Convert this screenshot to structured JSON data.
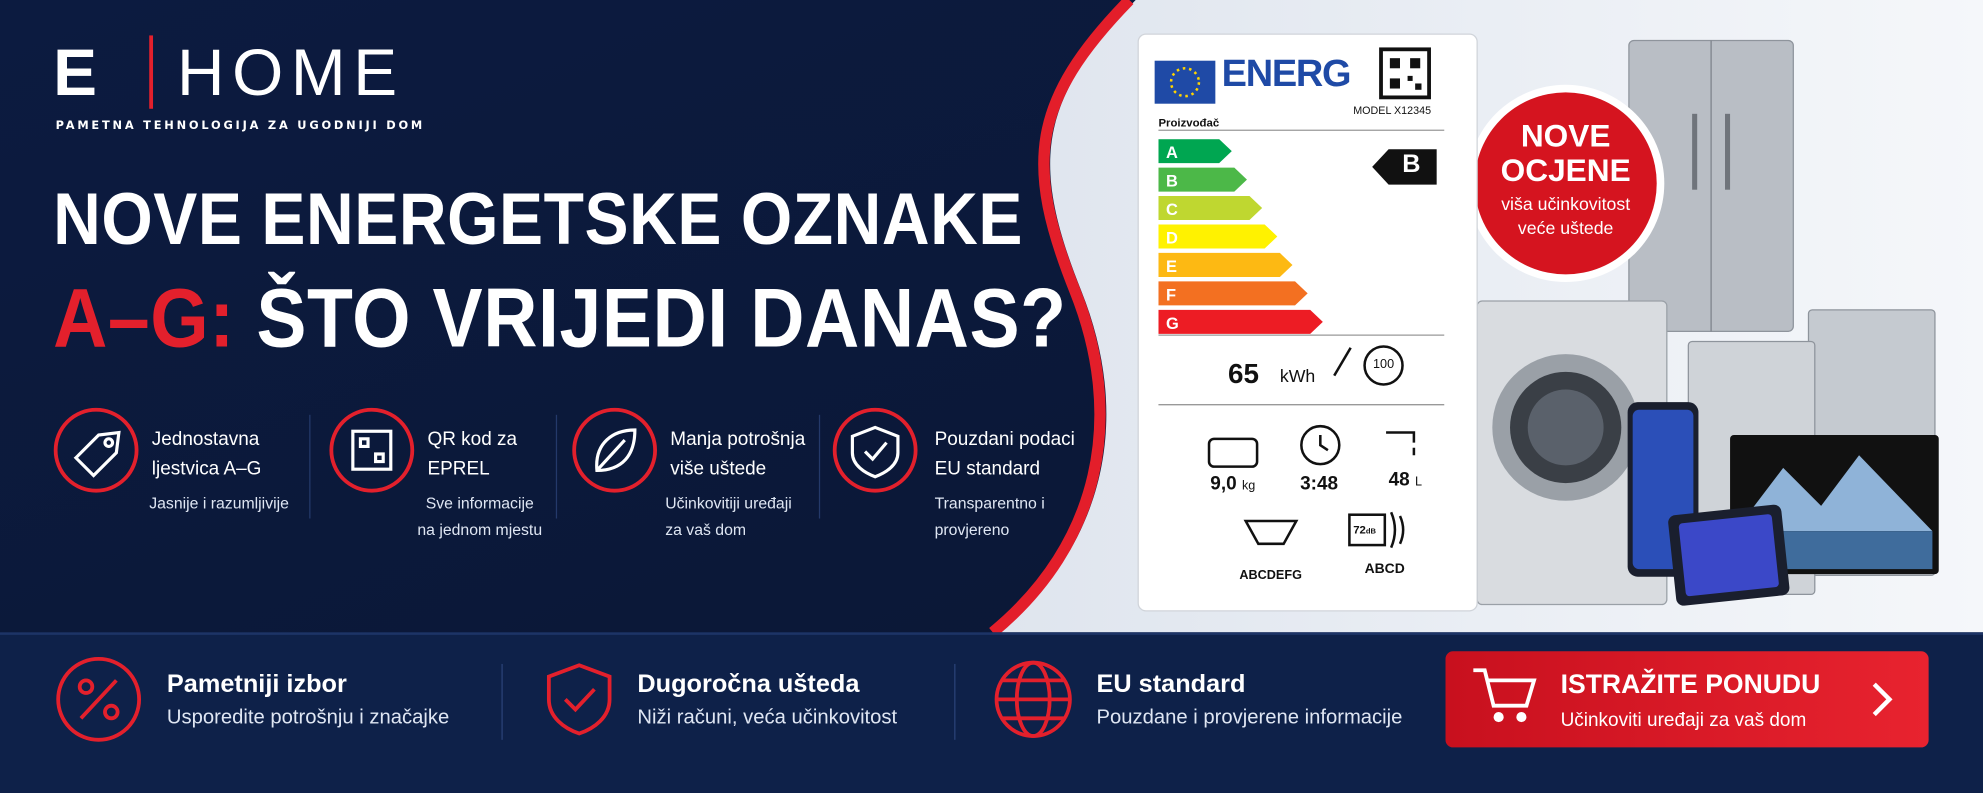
{
  "brand": {
    "logo_mark": "E",
    "logo": "HOME",
    "tagline": "PAMETNA TEHNOLOGIJA ZA UGODNIJI DOM"
  },
  "headline": {
    "line1": "NOVE ENERGETSKE OZNAKE",
    "line2_highlight": "A–G:",
    "line2": "ŠTO VRIJEDI DANAS?"
  },
  "features": [
    {
      "title_lines": [
        "Jednostavna",
        "ljestvica A–G"
      ],
      "text_lines": [
        "Jasnije i razumljivije"
      ]
    },
    {
      "title_lines": [
        "QR kod za",
        "EPREL"
      ],
      "text_lines": [
        "Sve informacije",
        "na jednom mjestu"
      ]
    },
    {
      "title_lines": [
        "Manja potrošnja",
        "više uštede"
      ],
      "text_lines": [
        "Učinkovitiji uređaji",
        "za vaš dom"
      ]
    },
    {
      "title_lines": [
        "Pouzdani podaci",
        "EU standard"
      ],
      "text_lines": [
        "Transparentno i",
        "provjereno"
      ]
    }
  ],
  "energy_label": {
    "header": "ENERG",
    "supplier": "Proizvođač",
    "model": "MODEL X12345",
    "classes": [
      "A",
      "B",
      "C",
      "D",
      "E",
      "F",
      "G"
    ],
    "rating": "B",
    "energy": "65",
    "energy_unit": "kWh",
    "cycles": "100",
    "capacity": "9,0",
    "capacity_unit": "kg",
    "duration": "3:48",
    "water": "48",
    "water_unit": "L",
    "spin_class": "ABCDEFG",
    "noise": "72",
    "noise_unit": "dB",
    "noise_class": "ABCD"
  },
  "badge": {
    "lines": [
      "NOVE",
      "OCJENE"
    ],
    "sub_lines": [
      "viša učinkovitost",
      "veće uštede"
    ]
  },
  "benefits": [
    {
      "title": "Pametniji izbor",
      "text": "Usporedite potrošnju i značajke"
    },
    {
      "title": "Dugoročna ušteda",
      "text": "Niži računi, veća učinkovitost"
    },
    {
      "title": "EU standard",
      "text": "Pouzdane i provjerene informacije"
    }
  ],
  "cta": {
    "title": "ISTRAŽITE PONUDU",
    "text": "Učinkoviti uređaji za vaš dom"
  }
}
